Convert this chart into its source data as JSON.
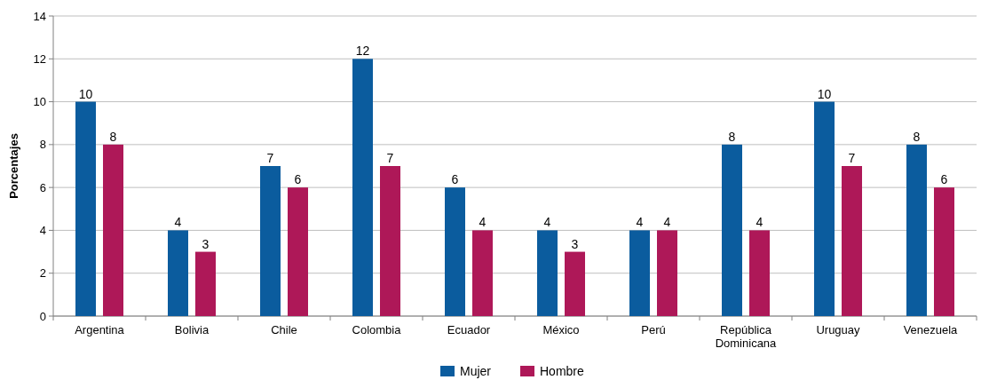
{
  "chart_data": {
    "type": "bar",
    "ylabel": "Porcentajes",
    "categories": [
      "Argentina",
      "Bolivia",
      "Chile",
      "Colombia",
      "Ecuador",
      "México",
      "Perú",
      "República Dominicana",
      "Uruguay",
      "Venezuela"
    ],
    "series": [
      {
        "name": "Mujer",
        "color": "#0b5c9e",
        "values": [
          10,
          4,
          7,
          12,
          6,
          4,
          4,
          8,
          10,
          8
        ]
      },
      {
        "name": "Hombre",
        "color": "#ae1858",
        "values": [
          8,
          3,
          6,
          7,
          4,
          3,
          4,
          4,
          7,
          6
        ]
      }
    ],
    "ylim": [
      0,
      14
    ],
    "yticks": [
      0,
      2,
      4,
      6,
      8,
      10,
      12,
      14
    ],
    "grid": "y",
    "legend": "bottom",
    "data_labels": true
  }
}
